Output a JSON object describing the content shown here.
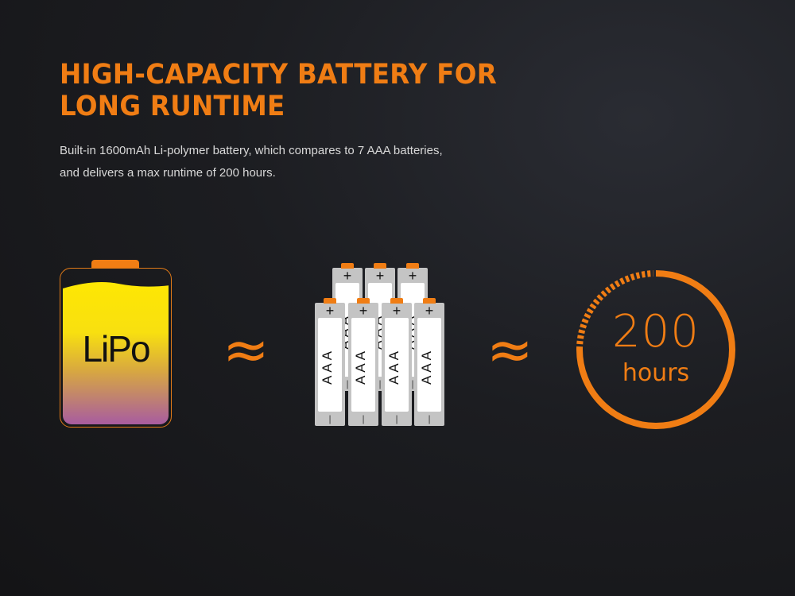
{
  "heading": {
    "line1": "HIGH-CAPACITY BATTERY FOR",
    "line2": "LONG RUNTIME"
  },
  "description": {
    "line1": "Built-in 1600mAh Li-polymer battery, which compares to 7 AAA batteries,",
    "line2": "and delivers a max runtime of 200 hours."
  },
  "lipo": {
    "label": "LiPo"
  },
  "approx_symbol": "≈",
  "aaa_battery": {
    "label": "AAA",
    "plus": "+",
    "minus": "|",
    "count": 7
  },
  "runtime": {
    "value": "200",
    "unit": "hours"
  },
  "colors": {
    "accent": "#f07d14",
    "background": "#1c1d21"
  }
}
